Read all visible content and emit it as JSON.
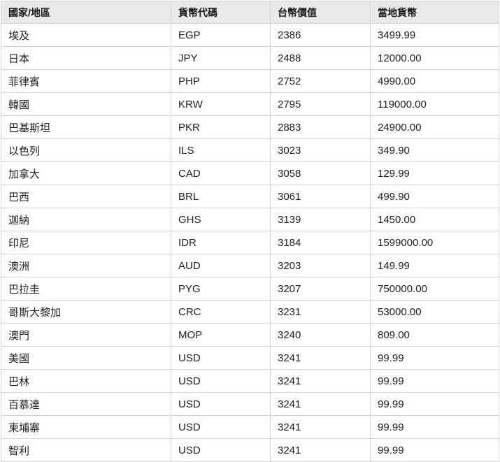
{
  "chart_data": {
    "type": "table",
    "title": "",
    "columns": [
      "國家/地區",
      "貨幣代碼",
      "台幣價值",
      "當地貨幣"
    ],
    "rows": [
      {
        "country": "埃及",
        "code": "EGP",
        "twd_value": "2386",
        "local_currency": "3499.99"
      },
      {
        "country": "日本",
        "code": "JPY",
        "twd_value": "2488",
        "local_currency": "12000.00"
      },
      {
        "country": "菲律賓",
        "code": "PHP",
        "twd_value": "2752",
        "local_currency": "4990.00"
      },
      {
        "country": "韓國",
        "code": "KRW",
        "twd_value": "2795",
        "local_currency": "119000.00"
      },
      {
        "country": "巴基斯坦",
        "code": "PKR",
        "twd_value": "2883",
        "local_currency": "24900.00"
      },
      {
        "country": "以色列",
        "code": "ILS",
        "twd_value": "3023",
        "local_currency": "349.90"
      },
      {
        "country": "加拿大",
        "code": "CAD",
        "twd_value": "3058",
        "local_currency": "129.99"
      },
      {
        "country": "巴西",
        "code": "BRL",
        "twd_value": "3061",
        "local_currency": "499.90"
      },
      {
        "country": "迦納",
        "code": "GHS",
        "twd_value": "3139",
        "local_currency": "1450.00"
      },
      {
        "country": "印尼",
        "code": "IDR",
        "twd_value": "3184",
        "local_currency": "1599000.00"
      },
      {
        "country": "澳洲",
        "code": "AUD",
        "twd_value": "3203",
        "local_currency": "149.99"
      },
      {
        "country": "巴拉圭",
        "code": "PYG",
        "twd_value": "3207",
        "local_currency": "750000.00"
      },
      {
        "country": "哥斯大黎加",
        "code": "CRC",
        "twd_value": "3231",
        "local_currency": "53000.00"
      },
      {
        "country": "澳門",
        "code": "MOP",
        "twd_value": "3240",
        "local_currency": "809.00"
      },
      {
        "country": "美國",
        "code": "USD",
        "twd_value": "3241",
        "local_currency": "99.99"
      },
      {
        "country": "巴林",
        "code": "USD",
        "twd_value": "3241",
        "local_currency": "99.99"
      },
      {
        "country": "百慕達",
        "code": "USD",
        "twd_value": "3241",
        "local_currency": "99.99"
      },
      {
        "country": "柬埔寨",
        "code": "USD",
        "twd_value": "3241",
        "local_currency": "99.99"
      },
      {
        "country": "智利",
        "code": "USD",
        "twd_value": "3241",
        "local_currency": "99.99"
      }
    ]
  },
  "colors": {
    "header_bg": "#e9e9e9",
    "border": "#d4d4d4",
    "text": "#212121",
    "row_bg": "#ffffff"
  }
}
